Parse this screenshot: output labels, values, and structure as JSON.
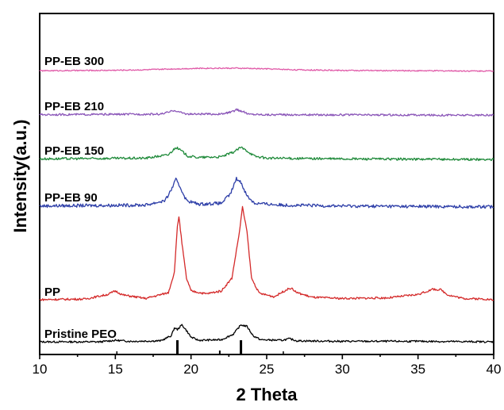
{
  "chart_data": {
    "type": "line",
    "title": "",
    "xlabel": "2 Theta",
    "ylabel": "Intensity(a.u.)",
    "xlim": [
      10,
      40
    ],
    "xticks": [
      10,
      15,
      20,
      25,
      30,
      35,
      40
    ],
    "yticks_visible": false,
    "grid": false,
    "legend": "inline labels at left of each trace",
    "series": [
      {
        "name": "Pristine PEO",
        "color": "#000000",
        "baseline": 0,
        "points": [
          [
            10,
            0.3
          ],
          [
            14,
            0.3
          ],
          [
            15,
            0.6
          ],
          [
            16,
            0.4
          ],
          [
            18,
            0.5
          ],
          [
            18.7,
            1.5
          ],
          [
            18.9,
            3.0
          ],
          [
            19.1,
            2.7
          ],
          [
            19.4,
            3.6
          ],
          [
            19.7,
            2.5
          ],
          [
            20.0,
            1.2
          ],
          [
            20.5,
            0.6
          ],
          [
            22,
            0.7
          ],
          [
            22.8,
            1.8
          ],
          [
            23.3,
            3.6
          ],
          [
            23.7,
            3.3
          ],
          [
            24.1,
            1.5
          ],
          [
            24.6,
            0.7
          ],
          [
            26,
            0.6
          ],
          [
            26.5,
            0.9
          ],
          [
            27,
            0.5
          ],
          [
            30,
            0.4
          ],
          [
            35,
            0.4
          ],
          [
            40,
            0.3
          ]
        ]
      },
      {
        "name": "PP",
        "color": "#d42a2a",
        "baseline": 0,
        "points": [
          [
            10,
            0.3
          ],
          [
            13,
            0.4
          ],
          [
            14.5,
            1.2
          ],
          [
            15,
            1.8
          ],
          [
            15.5,
            1.1
          ],
          [
            17,
            0.5
          ],
          [
            18.5,
            1.5
          ],
          [
            18.9,
            5
          ],
          [
            19.1,
            13
          ],
          [
            19.2,
            14.7
          ],
          [
            19.4,
            10
          ],
          [
            19.7,
            4
          ],
          [
            20,
            1.8
          ],
          [
            21,
            1.3
          ],
          [
            22,
            1.8
          ],
          [
            22.7,
            4
          ],
          [
            23.2,
            12
          ],
          [
            23.4,
            16.3
          ],
          [
            23.7,
            12
          ],
          [
            24,
            4
          ],
          [
            24.5,
            1.4
          ],
          [
            25.5,
            0.8
          ],
          [
            26.3,
            2.0
          ],
          [
            26.6,
            2.3
          ],
          [
            27,
            1.5
          ],
          [
            28,
            0.7
          ],
          [
            30,
            0.5
          ],
          [
            33,
            0.6
          ],
          [
            35,
            1.2
          ],
          [
            36,
            2.1
          ],
          [
            36.5,
            2.0
          ],
          [
            37,
            1.1
          ],
          [
            38,
            0.5
          ],
          [
            39.5,
            0.4
          ],
          [
            40,
            0.2
          ]
        ]
      },
      {
        "name": "PP-EB 90",
        "color": "#2e3fa8",
        "baseline": 0,
        "points": [
          [
            10,
            0.2
          ],
          [
            17,
            0.3
          ],
          [
            18.3,
            0.8
          ],
          [
            18.7,
            2.0
          ],
          [
            19.0,
            3.1
          ],
          [
            19.3,
            2.2
          ],
          [
            19.7,
            0.8
          ],
          [
            20.5,
            0.4
          ],
          [
            22,
            0.5
          ],
          [
            22.6,
            1.5
          ],
          [
            23.0,
            3.2
          ],
          [
            23.3,
            2.8
          ],
          [
            23.7,
            1.3
          ],
          [
            24.2,
            0.5
          ],
          [
            26,
            0.3
          ],
          [
            30,
            0.2
          ],
          [
            40,
            0.1
          ]
        ]
      },
      {
        "name": "PP-EB 150",
        "color": "#1f8a3a",
        "baseline": 0,
        "points": [
          [
            10,
            0.2
          ],
          [
            17,
            0.3
          ],
          [
            18.5,
            0.8
          ],
          [
            19.0,
            1.9
          ],
          [
            19.3,
            1.5
          ],
          [
            19.8,
            0.6
          ],
          [
            20.5,
            0.4
          ],
          [
            22,
            0.5
          ],
          [
            22.8,
            1.2
          ],
          [
            23.3,
            1.9
          ],
          [
            23.7,
            1.4
          ],
          [
            24.2,
            0.6
          ],
          [
            25,
            0.3
          ],
          [
            30,
            0.2
          ],
          [
            40,
            0.1
          ]
        ]
      },
      {
        "name": "PP-EB 210",
        "color": "#8a55b8",
        "baseline": 0,
        "points": [
          [
            10,
            0.2
          ],
          [
            18,
            0.3
          ],
          [
            18.6,
            0.7
          ],
          [
            18.9,
            1.0
          ],
          [
            19.3,
            0.6
          ],
          [
            19.8,
            0.3
          ],
          [
            22,
            0.3
          ],
          [
            22.7,
            0.7
          ],
          [
            23.0,
            1.1
          ],
          [
            23.4,
            0.8
          ],
          [
            23.8,
            0.3
          ],
          [
            25,
            0.2
          ],
          [
            40,
            0.1
          ]
        ]
      },
      {
        "name": "PP-EB 300",
        "color": "#e05aa8",
        "baseline": 0,
        "points": [
          [
            10,
            0.2
          ],
          [
            14,
            0.3
          ],
          [
            17,
            0.5
          ],
          [
            19,
            0.8
          ],
          [
            21,
            1.0
          ],
          [
            23,
            1.0
          ],
          [
            25,
            0.8
          ],
          [
            27,
            0.5
          ],
          [
            30,
            0.3
          ],
          [
            35,
            0.2
          ],
          [
            40,
            0.1
          ]
        ]
      }
    ],
    "reference_lines_2theta": [
      15.1,
      19.1,
      21.9,
      23.3,
      26.1
    ]
  }
}
